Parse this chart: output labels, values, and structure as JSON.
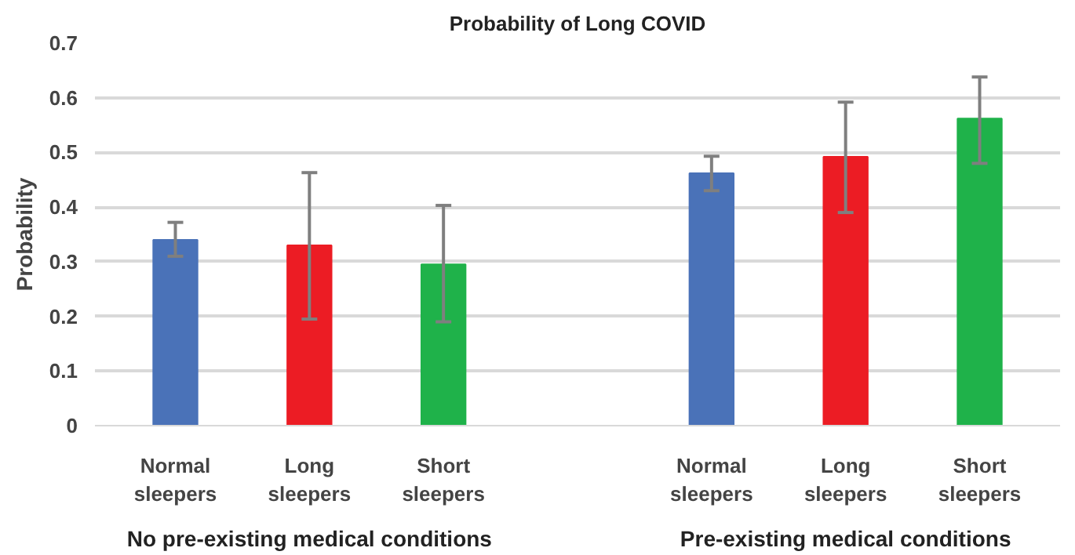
{
  "chart_data": {
    "type": "bar",
    "title": "Probability of Long COVID",
    "ylabel": "Probability",
    "categories": [
      "Normal sleepers",
      "Long sleepers",
      "Short sleepers",
      null,
      "Normal sleepers",
      "Long sleepers",
      "Short sleepers"
    ],
    "values": [
      0.34,
      0.33,
      0.295,
      null,
      0.462,
      0.492,
      0.562
    ],
    "colors": [
      "#4a72b8",
      "#ec1c24",
      "#1fb24a",
      "#ffffff",
      "#4a72b8",
      "#ec1c24",
      "#1fb24a"
    ],
    "errors": [
      [
        0.31,
        0.372
      ],
      [
        0.195,
        0.463
      ],
      [
        0.19,
        0.403
      ],
      null,
      [
        0.43,
        0.493
      ],
      [
        0.39,
        0.592
      ],
      [
        0.48,
        0.638
      ]
    ],
    "ylim": [
      0,
      0.7
    ],
    "yticks": [
      0,
      0.1,
      0.2,
      0.3,
      0.4,
      0.5,
      0.6,
      0.7
    ],
    "grid": "y",
    "annotations": [
      "No pre-existing medical conditions",
      "Pre-existing medical conditions"
    ]
  }
}
